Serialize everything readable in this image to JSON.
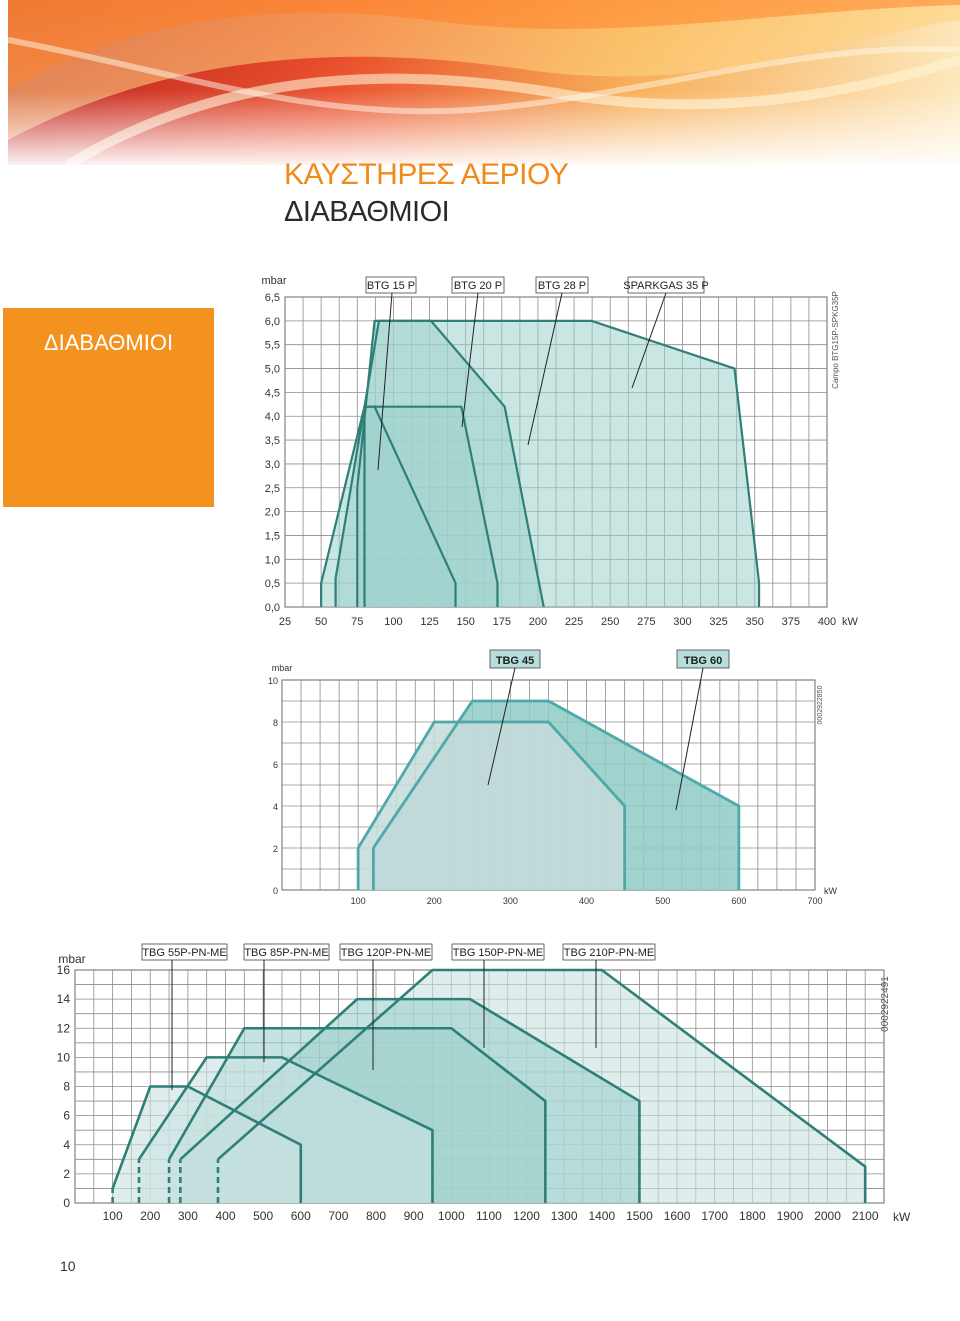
{
  "title": "ΚΑΥΣΤΗΡΕΣ ΑΕΡΙΟΥ",
  "subtitle": "ΔΙΑΒΑΘΜΙΟΙ",
  "side_label": "ΔΙΑΒΑΘΜΙΟΙ",
  "page_number": "10",
  "colors": {
    "orange": "#f4921f",
    "title_orange": "#f08a1a",
    "teal_dark": "#2e7f78",
    "teal_fill": "#9fd1cc",
    "teal_light": "#c9e3e1",
    "label_bg": "#b5dedd"
  },
  "chart_data": [
    {
      "type": "area",
      "ylabel": "mbar",
      "xlabel_unit": "kW",
      "ylim": [
        0,
        6.5
      ],
      "xlim": [
        25,
        400
      ],
      "x_ticks": [
        "25",
        "50",
        "75",
        "100",
        "125",
        "150",
        "175",
        "200",
        "225",
        "250",
        "275",
        "300",
        "325",
        "350",
        "375",
        "400"
      ],
      "y_ticks": [
        "0,0",
        "0,5",
        "1,0",
        "1,5",
        "2,0",
        "2,5",
        "3,0",
        "3,5",
        "4,0",
        "4,5",
        "5,0",
        "5,5",
        "6,0",
        "6,5"
      ],
      "code": "Campo BTG15P-SPKG35P",
      "series": [
        {
          "name": "BTG 15 P",
          "points": [
            [
              50,
              0
            ],
            [
              50,
              0.5
            ],
            [
              80,
              4.2
            ],
            [
              87,
              4.2
            ],
            [
              143,
              0.5
            ],
            [
              143,
              0
            ]
          ]
        },
        {
          "name": "BTG 20 P",
          "points": [
            [
              80,
              0
            ],
            [
              80,
              4.2
            ],
            [
              87,
              4.2
            ],
            [
              147,
              4.2
            ],
            [
              172,
              0.5
            ],
            [
              172,
              0
            ]
          ]
        },
        {
          "name": "BTG 28 P",
          "points": [
            [
              60,
              0
            ],
            [
              60,
              0.6
            ],
            [
              90,
              6.0
            ],
            [
              126,
              6.0
            ],
            [
              177,
              4.2
            ],
            [
              204,
              0
            ]
          ]
        },
        {
          "name": "SPARKGAS 35 P",
          "points": [
            [
              75,
              0
            ],
            [
              75,
              2.5
            ],
            [
              87,
              6.0
            ],
            [
              237,
              6.0
            ],
            [
              336,
              5.0
            ],
            [
              353,
              0.5
            ],
            [
              353,
              0
            ]
          ]
        }
      ]
    },
    {
      "type": "area",
      "ylabel": "mbar",
      "xlabel_unit": "kW",
      "ylim": [
        0,
        10
      ],
      "xlim": [
        0,
        700
      ],
      "x_ticks": [
        "100",
        "200",
        "300",
        "400",
        "500",
        "600",
        "700"
      ],
      "y_ticks": [
        "0",
        "2",
        "4",
        "6",
        "8",
        "10"
      ],
      "code": "0002922850",
      "series": [
        {
          "name": "TBG 45",
          "points": [
            [
              100,
              0
            ],
            [
              100,
              2
            ],
            [
              200,
              8
            ],
            [
              350,
              8
            ],
            [
              450,
              4
            ],
            [
              450,
              0
            ]
          ]
        },
        {
          "name": "TBG 60",
          "points": [
            [
              120,
              0
            ],
            [
              120,
              2
            ],
            [
              250,
              9
            ],
            [
              350,
              9
            ],
            [
              600,
              4
            ],
            [
              600,
              0
            ]
          ]
        }
      ]
    },
    {
      "type": "area",
      "ylabel": "mbar",
      "xlabel_unit": "kW",
      "ylim": [
        0,
        16
      ],
      "xlim": [
        0,
        2150
      ],
      "x_ticks": [
        "100",
        "200",
        "300",
        "400",
        "500",
        "600",
        "700",
        "800",
        "900",
        "1000",
        "1100",
        "1200",
        "1300",
        "1400",
        "1500",
        "1600",
        "1700",
        "1800",
        "1900",
        "2000",
        "2100"
      ],
      "y_ticks": [
        "0",
        "2",
        "4",
        "6",
        "8",
        "10",
        "12",
        "14",
        "16"
      ],
      "code": "0002922491",
      "series": [
        {
          "name": "TBG 55P-PN-ME",
          "points": [
            [
              100,
              0
            ],
            [
              100,
              1
            ],
            [
              200,
              8
            ],
            [
              300,
              8
            ],
            [
              600,
              4
            ],
            [
              600,
              0
            ]
          ]
        },
        {
          "name": "TBG 85P-PN-ME",
          "points": [
            [
              170,
              0
            ],
            [
              170,
              3
            ],
            [
              350,
              10
            ],
            [
              550,
              10
            ],
            [
              950,
              5
            ],
            [
              950,
              0
            ]
          ]
        },
        {
          "name": "TBG 120P-PN-ME",
          "points": [
            [
              250,
              0
            ],
            [
              250,
              3
            ],
            [
              450,
              12
            ],
            [
              1000,
              12
            ],
            [
              1250,
              7
            ],
            [
              1250,
              0
            ]
          ]
        },
        {
          "name": "TBG 150P-PN-ME",
          "points": [
            [
              280,
              0
            ],
            [
              280,
              3
            ],
            [
              750,
              14
            ],
            [
              1050,
              14
            ],
            [
              1500,
              7
            ],
            [
              1500,
              0
            ]
          ]
        },
        {
          "name": "TBG 210P-PN-ME",
          "points": [
            [
              380,
              0
            ],
            [
              380,
              3
            ],
            [
              950,
              16
            ],
            [
              1400,
              16
            ],
            [
              2100,
              2.5
            ],
            [
              2100,
              0
            ]
          ]
        }
      ]
    }
  ]
}
